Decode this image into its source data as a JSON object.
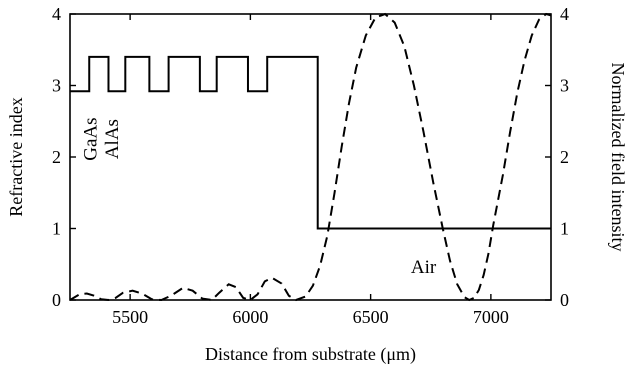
{
  "chart_data": {
    "type": "line",
    "xlabel": "Distance from substrate (μm)",
    "ylabel": "Refractive index",
    "y2label": "Normalized field intensity",
    "xlim": [
      5250,
      7250
    ],
    "ylim": [
      0,
      4
    ],
    "y2lim": [
      0,
      4
    ],
    "x_ticks": [
      "5500",
      "6000",
      "6500",
      "7000"
    ],
    "x_tick_values": [
      5500,
      6000,
      6500,
      7000
    ],
    "y_ticks": [
      "0",
      "1",
      "2",
      "3",
      "4"
    ],
    "y_tick_values": [
      0,
      1,
      2,
      3,
      4
    ],
    "y2_ticks": [
      "0",
      "1",
      "2",
      "3",
      "4"
    ],
    "y2_tick_values": [
      0,
      1,
      2,
      3,
      4
    ],
    "grid": false,
    "annotations": [
      {
        "text": "GaAs",
        "x": 5360,
        "y": 2.25,
        "rotate": -90
      },
      {
        "text": "AlAs",
        "x": 5450,
        "y": 2.25,
        "rotate": -90
      },
      {
        "text": "Air",
        "x": 6720,
        "y": 0.38
      }
    ],
    "series": [
      {
        "style": "solid",
        "axis": "left",
        "x": [
          5250,
          5330,
          5330,
          5410,
          5410,
          5480,
          5480,
          5580,
          5580,
          5660,
          5660,
          5790,
          5790,
          5860,
          5860,
          5990,
          5990,
          6070,
          6070,
          6180,
          6180,
          6280,
          6280,
          7250
        ],
        "y": [
          2.92,
          2.92,
          3.4,
          3.4,
          2.92,
          2.92,
          3.4,
          3.4,
          2.92,
          2.92,
          3.4,
          3.4,
          2.92,
          2.92,
          3.4,
          3.4,
          2.92,
          2.92,
          3.4,
          3.4,
          3.4,
          3.4,
          1.0,
          1.0
        ]
      },
      {
        "style": "dashed",
        "axis": "right",
        "x": [
          5250,
          5270,
          5290,
          5320,
          5350,
          5380,
          5410,
          5440,
          5470,
          5510,
          5550,
          5590,
          5630,
          5670,
          5720,
          5760,
          5800,
          5840,
          5870,
          5910,
          5940,
          5970,
          6000,
          6030,
          6060,
          6090,
          6130,
          6160,
          6190,
          6230,
          6260,
          6290,
          6320,
          6350,
          6380,
          6410,
          6440,
          6480,
          6520,
          6560,
          6600,
          6640,
          6680,
          6720,
          6760,
          6800,
          6830,
          6860,
          6890,
          6910,
          6930,
          6950,
          6970,
          6990,
          7010,
          7050,
          7080,
          7110,
          7140,
          7170,
          7200,
          7230,
          7250
        ],
        "y": [
          0.0,
          0.04,
          0.08,
          0.09,
          0.06,
          0.01,
          0.0,
          0.03,
          0.1,
          0.13,
          0.09,
          0.01,
          0.0,
          0.06,
          0.17,
          0.13,
          0.02,
          0.0,
          0.1,
          0.22,
          0.18,
          0.03,
          0.0,
          0.08,
          0.26,
          0.31,
          0.23,
          0.06,
          0.0,
          0.05,
          0.2,
          0.48,
          0.9,
          1.5,
          2.15,
          2.75,
          3.25,
          3.7,
          3.95,
          4.0,
          3.88,
          3.55,
          3.0,
          2.35,
          1.65,
          1.0,
          0.55,
          0.22,
          0.04,
          0.0,
          0.03,
          0.14,
          0.35,
          0.65,
          1.05,
          1.75,
          2.35,
          2.9,
          3.35,
          3.7,
          3.92,
          4.0,
          3.98
        ]
      }
    ]
  }
}
